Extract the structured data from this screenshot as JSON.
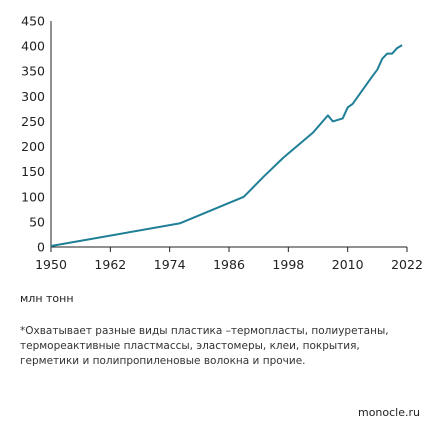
{
  "chart_data": {
    "type": "line",
    "title": "",
    "xlabel": "",
    "ylabel": "",
    "xlim": [
      1950,
      2022
    ],
    "ylim": [
      0,
      450
    ],
    "x_ticks": [
      1950,
      1962,
      1974,
      1986,
      1998,
      2010,
      2022
    ],
    "y_ticks": [
      0,
      50,
      100,
      150,
      200,
      250,
      300,
      350,
      400,
      450
    ],
    "grid": false,
    "legend": "none",
    "series": [
      {
        "color": "#1f7f97",
        "points": [
          [
            1950,
            2
          ],
          [
            1976,
            47
          ],
          [
            1989,
            100
          ],
          [
            1993,
            140
          ],
          [
            1997,
            178
          ],
          [
            2003,
            228
          ],
          [
            2006,
            262
          ],
          [
            2007,
            250
          ],
          [
            2009,
            256
          ],
          [
            2010,
            278
          ],
          [
            2011,
            285
          ],
          [
            2015,
            340
          ],
          [
            2016,
            353
          ],
          [
            2017,
            375
          ],
          [
            2018,
            385
          ],
          [
            2019,
            385
          ],
          [
            2020,
            396
          ],
          [
            2021,
            402
          ]
        ]
      }
    ]
  },
  "footer": {
    "unit": "млн тонн",
    "note": "*Охватывает разные виды пластика –термопласты, полиуретаны, термореактивные пластмассы, эластомеры, клеи, покрытия, герметики и полипропиленовые волокна и прочие.",
    "source": "monocle.ru"
  }
}
